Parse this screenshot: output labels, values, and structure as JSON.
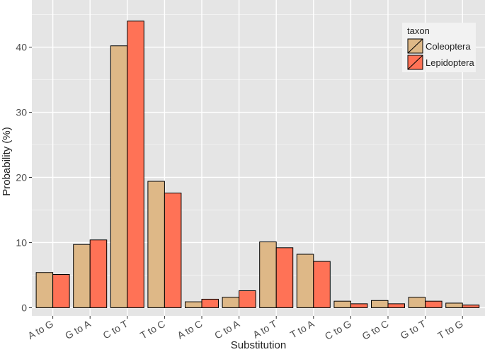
{
  "chart_data": {
    "type": "bar",
    "xlabel": "Substitution",
    "ylabel": "Probability (%)",
    "ylim": [
      0,
      45
    ],
    "yticks": [
      0,
      10,
      20,
      30,
      40
    ],
    "grid": true,
    "categories": [
      "A to G",
      "G to A",
      "C to T",
      "T to C",
      "A to C",
      "C to A",
      "A to T",
      "T to A",
      "C to G",
      "G to C",
      "G to T",
      "T to G"
    ],
    "series": [
      {
        "name": "Coleoptera",
        "color": "#DEB887",
        "values": [
          5.4,
          9.7,
          40.2,
          19.4,
          0.9,
          1.6,
          10.1,
          8.2,
          1.0,
          1.1,
          1.6,
          0.7
        ]
      },
      {
        "name": "Lepidoptera",
        "color": "#FF7256",
        "values": [
          5.1,
          10.4,
          44.0,
          17.6,
          1.3,
          2.6,
          9.2,
          7.1,
          0.6,
          0.6,
          1.0,
          0.4
        ]
      }
    ],
    "legend": {
      "title": "taxon",
      "position": "top-right"
    },
    "background_color": "#E5E5E5",
    "grid_color": "#FFFFFF"
  }
}
